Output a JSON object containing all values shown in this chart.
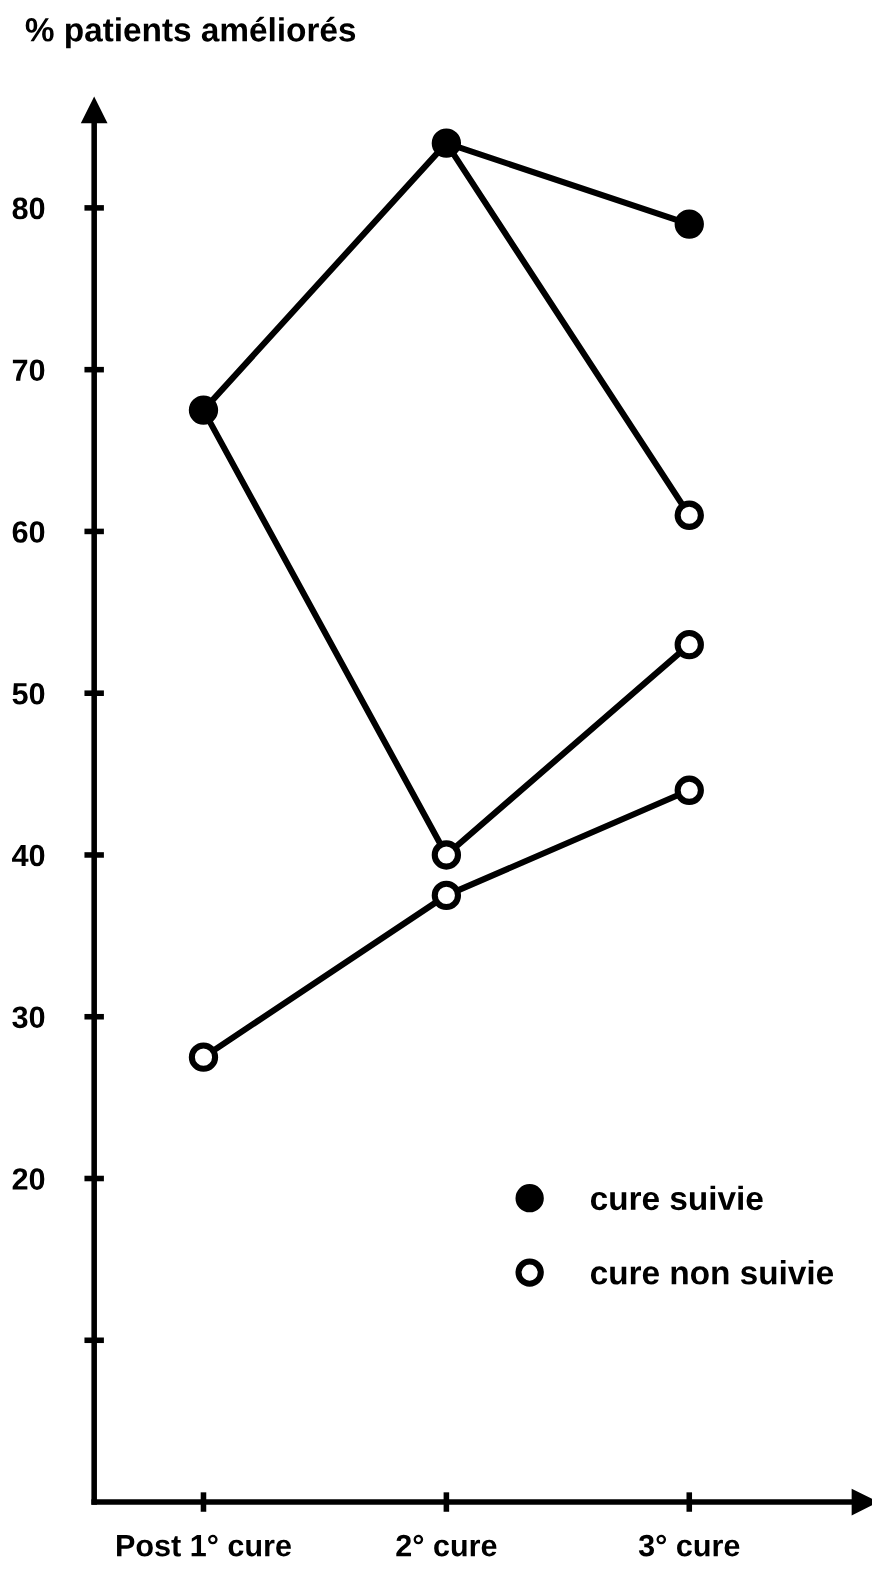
{
  "chart_data": {
    "type": "line",
    "ylabel": "% patients améliorés",
    "categories": [
      "Post 1° cure",
      "2° cure",
      "3° cure"
    ],
    "series": [
      {
        "color": "#000000",
        "values": [
          67.5,
          84,
          79
        ]
      },
      {
        "color": "#000000",
        "values": [
          67.5,
          40,
          53
        ]
      },
      {
        "color": "#000000",
        "values": [
          null,
          84,
          61
        ]
      },
      {
        "color": "#000000",
        "values": [
          27.5,
          37.5,
          44
        ]
      },
      {
        "type": "scatter",
        "name": "cure suivie",
        "color": "#000000",
        "x": [
          "Post 1° cure",
          "2° cure",
          "3° cure"
        ],
        "values": [
          67.5,
          84,
          79
        ]
      },
      {
        "type": "scatter",
        "name": "cure non suivie",
        "color": "#ffffff",
        "x": [
          "2° cure",
          "3° cure",
          "3° cure",
          "Post 1° cure",
          "2° cure",
          "3° cure"
        ],
        "values": [
          40,
          53,
          61,
          27.5,
          37.5,
          44
        ]
      }
    ],
    "ylim": [
      0,
      86
    ],
    "yticks": [
      {
        "value": 10,
        "label": null
      },
      20,
      30,
      40,
      50,
      60,
      70,
      80
    ],
    "grid": false,
    "legend": "bottom right"
  }
}
